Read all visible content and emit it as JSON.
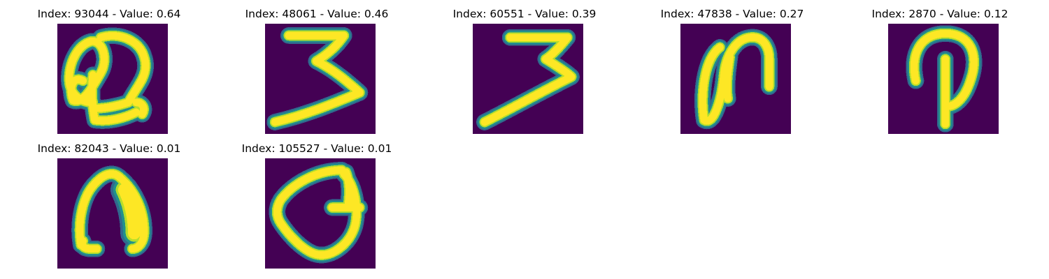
{
  "colors": {
    "background": "#440154",
    "stroke": "#fde725",
    "edge_inner": "#b5de2b",
    "edge_outer": "#21918c",
    "edge_soft": "#31688e"
  },
  "panels": [
    {
      "title": "Index: 93044 - Value: 0.64",
      "glyph": "digit-2-loopy"
    },
    {
      "title": "Index: 48061 - Value: 0.46",
      "glyph": "digit-3"
    },
    {
      "title": "Index: 60551 - Value: 0.39",
      "glyph": "digit-3-slanted"
    },
    {
      "title": "Index: 47838 - Value: 0.27",
      "glyph": "loop-n"
    },
    {
      "title": "Index: 2870 - Value: 0.12",
      "glyph": "p-shape"
    },
    {
      "title": "Index: 82043 - Value: 0.01",
      "glyph": "arch"
    },
    {
      "title": "Index: 105527 - Value: 0.01",
      "glyph": "g-shape"
    }
  ]
}
